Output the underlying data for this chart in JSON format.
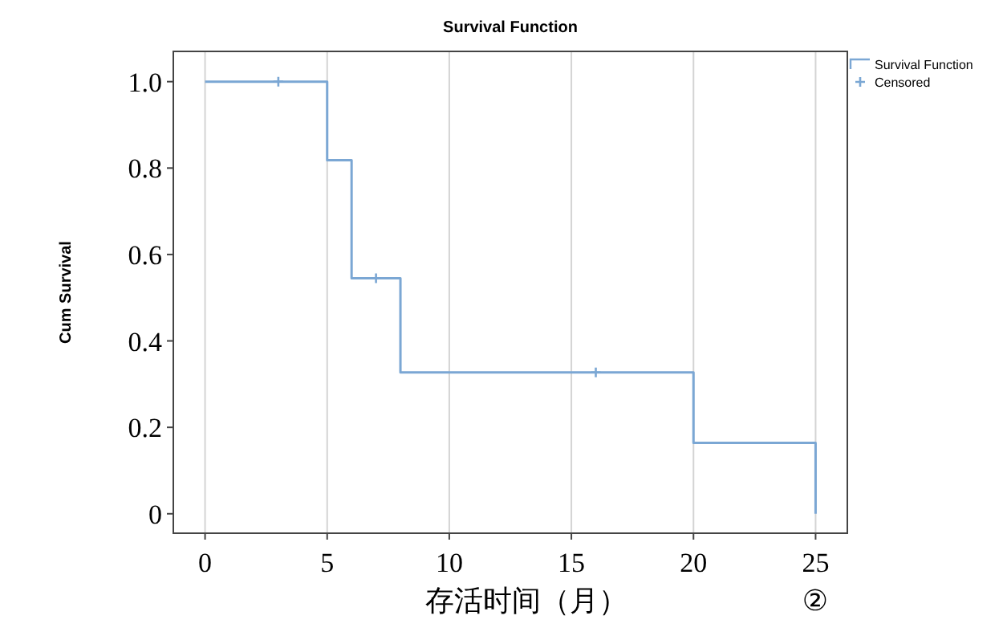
{
  "chart_data": {
    "type": "step",
    "title": "Survival Function",
    "xlabel": "存活时间（月）",
    "ylabel": "Cum Survival",
    "xlim": [
      -1.3,
      26.3
    ],
    "ylim": [
      -0.045,
      1.07
    ],
    "xticks": [
      0,
      5,
      10,
      15,
      20,
      25
    ],
    "yticks": [
      {
        "value": 0,
        "label": "0"
      },
      {
        "value": 0.2,
        "label": "0.2"
      },
      {
        "value": 0.4,
        "label": "0.4"
      },
      {
        "value": 0.6,
        "label": "0.6"
      },
      {
        "value": 0.8,
        "label": "0.8"
      },
      {
        "value": 1,
        "label": "1.0"
      }
    ],
    "grid": "x",
    "legend": "top right",
    "series": [
      {
        "name": "Survival Function",
        "color": "#7ba7d4",
        "x": [
          0,
          5,
          6,
          8,
          20,
          25
        ],
        "values": [
          1,
          0.818,
          0.545,
          0.327,
          0.164,
          0
        ]
      },
      {
        "name": "Censored",
        "type": "scatter",
        "marker": "cross",
        "color": "#7ba7d4",
        "x": [
          3,
          7,
          16
        ],
        "values": [
          1,
          0.545,
          0.327
        ]
      }
    ],
    "annotations": [
      "②"
    ]
  }
}
